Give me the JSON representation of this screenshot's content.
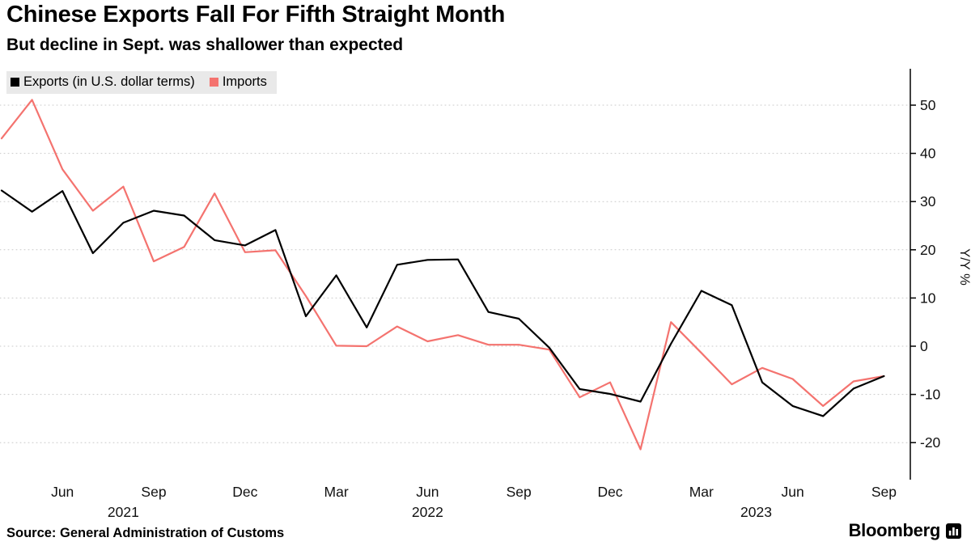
{
  "header": {
    "title": "Chinese Exports Fall For Fifth Straight Month",
    "subtitle": "But decline in Sept. was shallower than expected"
  },
  "legend": {
    "items": [
      {
        "label": "Exports (in U.S. dollar terms)",
        "color": "#000000"
      },
      {
        "label": "Imports",
        "color": "#f4736f"
      }
    ]
  },
  "footer": {
    "source": "Source: General Administration of Customs",
    "brand": "Bloomberg"
  },
  "chart_data": {
    "type": "line",
    "title": "Chinese Exports Fall For Fifth Straight Month",
    "subtitle": "But decline in Sept. was shallower than expected",
    "xlabel": "",
    "ylabel": "Y/Y %",
    "ylim": [
      -25,
      55
    ],
    "yticks": [
      50,
      40,
      30,
      20,
      10,
      0,
      -10,
      -20
    ],
    "grid": "horizontal-dotted",
    "legend_position": "top-left",
    "x": [
      "Apr 2021",
      "May 2021",
      "Jun 2021",
      "Jul 2021",
      "Aug 2021",
      "Sep 2021",
      "Oct 2021",
      "Nov 2021",
      "Dec 2021",
      "Jan 2022",
      "Feb 2022",
      "Mar 2022",
      "Apr 2022",
      "May 2022",
      "Jun 2022",
      "Jul 2022",
      "Aug 2022",
      "Sep 2022",
      "Oct 2022",
      "Nov 2022",
      "Dec 2022",
      "Jan 2023",
      "Feb 2023",
      "Mar 2023",
      "Apr 2023",
      "May 2023",
      "Jun 2023",
      "Jul 2023",
      "Aug 2023",
      "Sep 2023"
    ],
    "series": [
      {
        "name": "Exports (in U.S. dollar terms)",
        "color": "#000000",
        "values": [
          32.3,
          27.9,
          32.2,
          19.3,
          25.6,
          28.1,
          27.1,
          22.0,
          20.9,
          24.1,
          6.2,
          14.7,
          3.9,
          16.9,
          17.9,
          18.0,
          7.1,
          5.7,
          -0.3,
          -8.9,
          -9.9,
          -11.5,
          0.5,
          11.5,
          8.5,
          -7.5,
          -12.4,
          -14.5,
          -8.8,
          -6.2
        ]
      },
      {
        "name": "Imports",
        "color": "#f4736f",
        "values": [
          43.1,
          51.1,
          36.7,
          28.1,
          33.1,
          17.6,
          20.6,
          31.7,
          19.5,
          19.9,
          10.4,
          0.1,
          0.0,
          4.1,
          1.0,
          2.3,
          0.3,
          0.3,
          -0.7,
          -10.6,
          -7.5,
          -21.4,
          5.0,
          -1.4,
          -7.9,
          -4.5,
          -6.8,
          -12.4,
          -7.3,
          -6.2
        ]
      }
    ],
    "x_ticks": [
      {
        "label": "Jun",
        "index": 2
      },
      {
        "label": "Sep",
        "index": 5
      },
      {
        "label": "Dec",
        "index": 8
      },
      {
        "label": "Mar",
        "index": 11
      },
      {
        "label": "Jun",
        "index": 14
      },
      {
        "label": "Sep",
        "index": 17
      },
      {
        "label": "Dec",
        "index": 20
      },
      {
        "label": "Mar",
        "index": 23
      },
      {
        "label": "Jun",
        "index": 26
      },
      {
        "label": "Sep",
        "index": 29
      }
    ],
    "year_labels": [
      {
        "label": "2021",
        "index": 4
      },
      {
        "label": "2022",
        "index": 14
      },
      {
        "label": "2023",
        "index": 24.8
      }
    ]
  }
}
